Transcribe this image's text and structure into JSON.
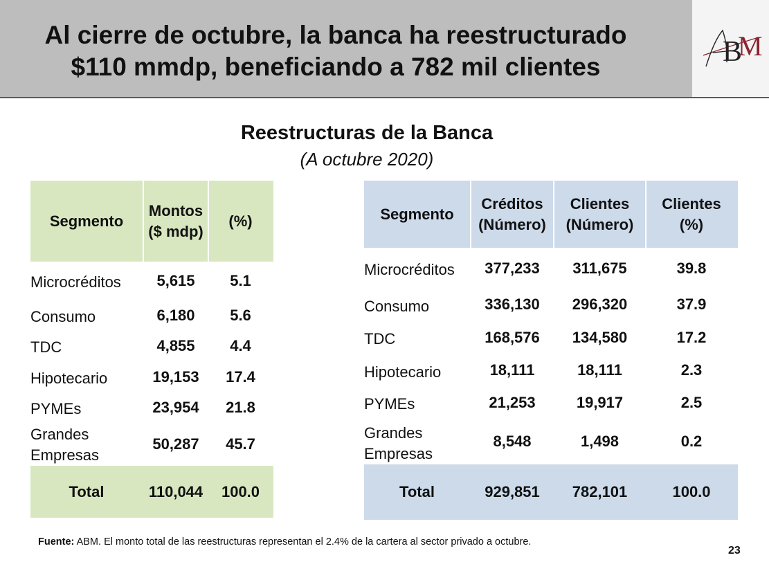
{
  "slide": {
    "title_line1": "Al cierre de octubre, la banca ha reestructurado",
    "title_line2": "$110 mmdp, beneficiando a 782 mil clientes",
    "logo_text": "ABM",
    "subtitle": "Reestructuras de la Banca",
    "subtitle_date": "(A octubre 2020)",
    "page_number": "23"
  },
  "left_table": {
    "headers": {
      "segment": "Segmento",
      "amounts": [
        "Montos",
        "($ mdp)"
      ],
      "pct": "(%)"
    },
    "rows": [
      {
        "segment": "Microcréditos",
        "amount": "5,615",
        "pct": "5.1"
      },
      {
        "segment": "Consumo",
        "amount": "6,180",
        "pct": "5.6"
      },
      {
        "segment": "TDC",
        "amount": "4,855",
        "pct": "4.4"
      },
      {
        "segment": "Hipotecario",
        "amount": "19,153",
        "pct": "17.4"
      },
      {
        "segment": "PYMEs",
        "amount": "23,954",
        "pct": "21.8"
      },
      {
        "segment": "Grandes Empresas",
        "segment_lines": [
          "Grandes",
          "Empresas"
        ],
        "amount": "50,287",
        "pct": "45.7"
      }
    ],
    "total": {
      "label": "Total",
      "amount": "110,044",
      "pct": "100.0"
    }
  },
  "right_table": {
    "headers": {
      "segment": "Segmento",
      "credits": [
        "Créditos",
        "(Número)"
      ],
      "clients": [
        "Clientes",
        "(Número)"
      ],
      "clients_pct": [
        "Clientes",
        "(%)"
      ]
    },
    "rows": [
      {
        "segment": "Microcréditos",
        "credits": "377,233",
        "clients": "311,675",
        "pct": "39.8"
      },
      {
        "segment": "Consumo",
        "credits": "336,130",
        "clients": "296,320",
        "pct": "37.9"
      },
      {
        "segment": "TDC",
        "credits": "168,576",
        "clients": "134,580",
        "pct": "17.2"
      },
      {
        "segment": "Hipotecario",
        "credits": "18,111",
        "clients": "18,111",
        "pct": "2.3"
      },
      {
        "segment": "PYMEs",
        "credits": "21,253",
        "clients": "19,917",
        "pct": "2.5"
      },
      {
        "segment": "Grandes Empresas",
        "segment_lines": [
          "Grandes",
          "Empresas"
        ],
        "credits": "8,548",
        "clients": "1,498",
        "pct": "0.2"
      }
    ],
    "total": {
      "label": "Total",
      "credits": "929,851",
      "clients": "782,101",
      "pct": "100.0"
    }
  },
  "footer": {
    "source_label": "Fuente:",
    "source_text": " ABM. El monto total de las reestructuras representan el 2.4% de la cartera al sector privado a octubre."
  }
}
